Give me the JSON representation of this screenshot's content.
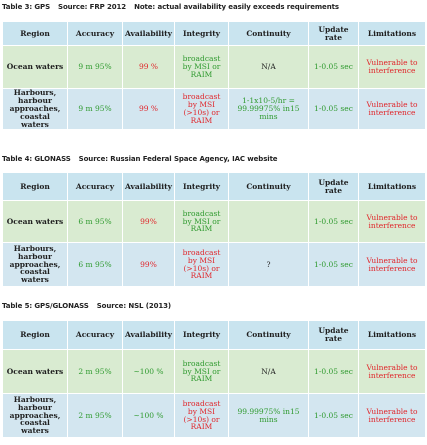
{
  "table3": {
    "caption_label": "Table 3: GPS",
    "caption_source": "Source: FRP 2012",
    "caption_note": "Note: actual availability easily exceeds requirements",
    "headers": [
      "Region",
      "Accuracy",
      "Availability",
      "Integrity",
      "Continuity",
      "Update rate",
      "Limitations"
    ],
    "rows": [
      {
        "region": "Ocean waters",
        "accuracy": "9 m 95%",
        "availability": "99 %",
        "integrity": "broadcast by MSI or RAIM",
        "continuity": "N/A",
        "update_rate": "1-0.05 sec",
        "limitations": "Vulnerable to interference"
      },
      {
        "region": "Harbours, harbour approaches, coastal waters",
        "accuracy": "9 m 95%",
        "availability": "99 %",
        "integrity": "broadcast by MSI (>10s) or RAIM",
        "continuity": "1-1x10-5/hr = 99.99975% in15 mins",
        "update_rate": "1-0.05 sec",
        "limitations": "Vulnerable to interference"
      }
    ]
  },
  "table4": {
    "caption_label": "Table 4: GLONASS",
    "caption_source": "Source: Russian Federal Space Agency, IAC website",
    "headers": [
      "Region",
      "Accuracy",
      "Availability",
      "Integrity",
      "Continuity",
      "Update rate",
      "Limitations"
    ],
    "rows": [
      {
        "region": "Ocean waters",
        "accuracy": "6 m 95%",
        "availability": "99%",
        "integrity": "broadcast by MSI or RAIM",
        "continuity": "",
        "update_rate": "1-0.05 sec",
        "limitations": "Vulnerable to interference"
      },
      {
        "region": "Harbours, harbour approaches, coastal waters",
        "accuracy": "6 m 95%",
        "availability": "99%",
        "integrity": "broadcast by MSI (>10s) or RAIM",
        "continuity": "?",
        "update_rate": "1-0.05 sec",
        "limitations": "Vulnerable to interference"
      }
    ]
  },
  "table5": {
    "caption_label": "Table 5: GPS/GLONASS",
    "caption_source": "Source: NSL (2013)",
    "headers": [
      "Region",
      "Accuracy",
      "Availability",
      "Integrity",
      "Continuity",
      "Update rate",
      "Limitations"
    ],
    "rows": [
      {
        "region": "Ocean waters",
        "accuracy": "2 m 95%",
        "availability": "~100 %",
        "integrity": "broadcast by MSI or RAIM",
        "continuity": "N/A",
        "update_rate": "1-0.05 sec",
        "limitations": "Vulnerable to interference"
      },
      {
        "region": "Harbours, harbour approaches, coastal waters",
        "accuracy": "2 m 95%",
        "availability": "~100 %",
        "integrity": "broadcast by MSI (>10s) or RAIM",
        "continuity": "99.99975% in15 mins",
        "update_rate": "1-0.05 sec",
        "limitations": "Vulnerable to interference"
      }
    ]
  },
  "colors": {
    "header_bg": "#c9e4ef",
    "row1_bg": "#d9ebd1",
    "row2_bg": "#d3e6f0",
    "green_text": "#2f9a2f",
    "red_text": "#e0262b"
  }
}
